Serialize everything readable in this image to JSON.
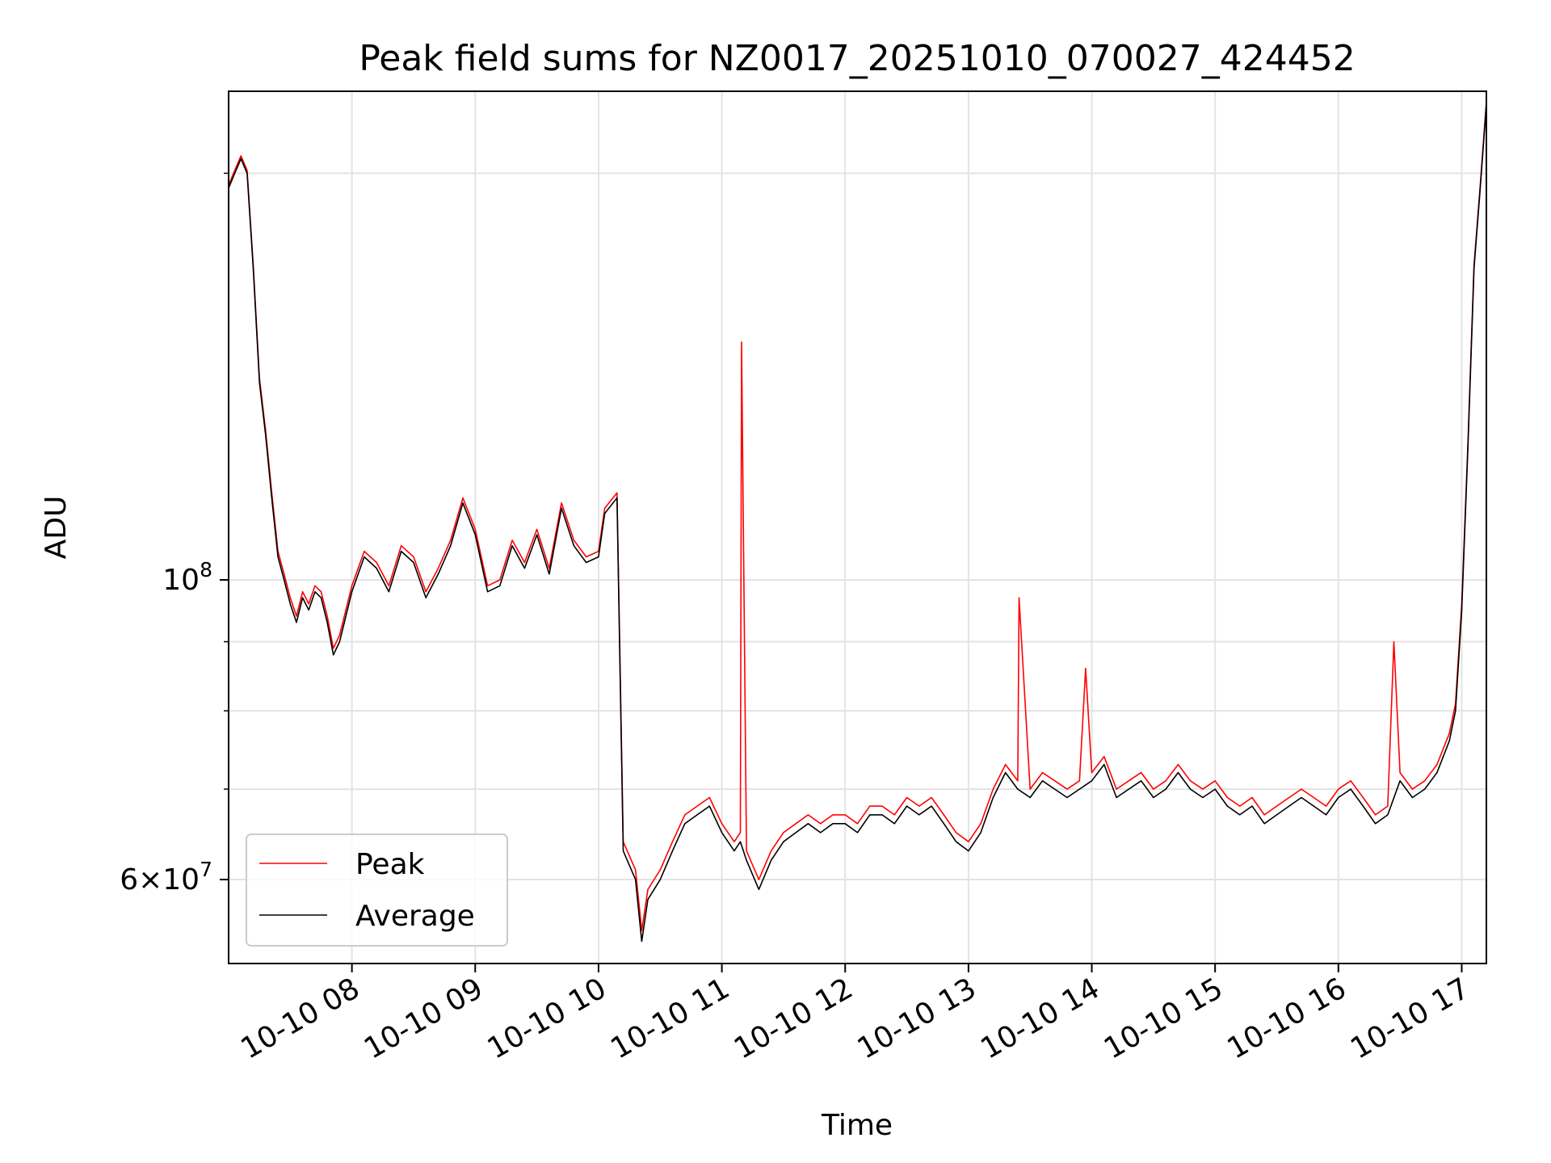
{
  "chart_data": {
    "type": "line",
    "title": "Peak field sums for NZ0017_20251010_070027_424452",
    "xlabel": "Time",
    "ylabel": "ADU",
    "yscale": "log",
    "grid": true,
    "legend_position": "lower-left",
    "xlim": [
      7.0,
      17.2
    ],
    "ylim": [
      52000000,
      230000000
    ],
    "x_ticks": [
      {
        "value": 8,
        "label": "10-10 08"
      },
      {
        "value": 9,
        "label": "10-10 09"
      },
      {
        "value": 10,
        "label": "10-10 10"
      },
      {
        "value": 11,
        "label": "10-10 11"
      },
      {
        "value": 12,
        "label": "10-10 12"
      },
      {
        "value": 13,
        "label": "10-10 13"
      },
      {
        "value": 14,
        "label": "10-10 14"
      },
      {
        "value": 15,
        "label": "10-10 15"
      },
      {
        "value": 16,
        "label": "10-10 16"
      },
      {
        "value": 17,
        "label": "10-10 17"
      }
    ],
    "y_ticks": [
      {
        "value": 100000000,
        "base": "10",
        "exp": "8",
        "mant": ""
      },
      {
        "value": 60000000,
        "base": "10",
        "exp": "7",
        "mant": "6×"
      }
    ],
    "y_minor_ticks": [
      70000000,
      80000000,
      90000000,
      200000000
    ],
    "x_unit": "hour of day (2025-10-10)",
    "series": [
      {
        "name": "Average",
        "color": "#000000",
        "x": [
          7.0,
          7.05,
          7.1,
          7.15,
          7.2,
          7.25,
          7.3,
          7.35,
          7.4,
          7.45,
          7.5,
          7.55,
          7.6,
          7.65,
          7.7,
          7.75,
          7.8,
          7.85,
          7.9,
          8.0,
          8.1,
          8.2,
          8.3,
          8.4,
          8.5,
          8.6,
          8.7,
          8.8,
          8.9,
          9.0,
          9.1,
          9.2,
          9.3,
          9.4,
          9.5,
          9.6,
          9.7,
          9.8,
          9.9,
          10.0,
          10.05,
          10.15,
          10.2,
          10.3,
          10.35,
          10.4,
          10.5,
          10.6,
          10.7,
          10.8,
          10.9,
          11.0,
          11.1,
          11.15,
          11.2,
          11.3,
          11.4,
          11.5,
          11.6,
          11.7,
          11.8,
          11.9,
          12.0,
          12.1,
          12.2,
          12.3,
          12.4,
          12.5,
          12.6,
          12.7,
          12.8,
          12.9,
          13.0,
          13.1,
          13.2,
          13.3,
          13.4,
          13.5,
          13.6,
          13.7,
          13.8,
          13.9,
          14.0,
          14.1,
          14.2,
          14.3,
          14.4,
          14.5,
          14.6,
          14.7,
          14.8,
          14.9,
          15.0,
          15.1,
          15.2,
          15.3,
          15.4,
          15.5,
          15.6,
          15.7,
          15.8,
          15.9,
          16.0,
          16.1,
          16.2,
          16.3,
          16.4,
          16.5,
          16.6,
          16.7,
          16.8,
          16.9,
          16.95,
          17.0,
          17.05,
          17.1,
          17.15,
          17.2
        ],
        "y": [
          195000000,
          200000000,
          205000000,
          200000000,
          170000000,
          140000000,
          128000000,
          115000000,
          104000000,
          100000000,
          96000000,
          93000000,
          97000000,
          95000000,
          98000000,
          97000000,
          93000000,
          88000000,
          90000000,
          98000000,
          104000000,
          102000000,
          98000000,
          105000000,
          103000000,
          97000000,
          101000000,
          106000000,
          114000000,
          108000000,
          98000000,
          99000000,
          106000000,
          102000000,
          108000000,
          101000000,
          113000000,
          106000000,
          103000000,
          104000000,
          112000000,
          115000000,
          63000000,
          60000000,
          54000000,
          58000000,
          60000000,
          63000000,
          66000000,
          67000000,
          68000000,
          65000000,
          63000000,
          64000000,
          62000000,
          59000000,
          62000000,
          64000000,
          65000000,
          66000000,
          65000000,
          66000000,
          66000000,
          65000000,
          67000000,
          67000000,
          66000000,
          68000000,
          67000000,
          68000000,
          66000000,
          64000000,
          63000000,
          65000000,
          69000000,
          72000000,
          70000000,
          69000000,
          71000000,
          70000000,
          69000000,
          70000000,
          71000000,
          73000000,
          69000000,
          70000000,
          71000000,
          69000000,
          70000000,
          72000000,
          70000000,
          69000000,
          70000000,
          68000000,
          67000000,
          68000000,
          66000000,
          67000000,
          68000000,
          69000000,
          68000000,
          67000000,
          69000000,
          70000000,
          68000000,
          66000000,
          67000000,
          71000000,
          69000000,
          70000000,
          72000000,
          76000000,
          80000000,
          95000000,
          125000000,
          170000000,
          195000000,
          225000000
        ]
      },
      {
        "name": "Peak",
        "color": "#ff0000",
        "x": [
          7.0,
          7.05,
          7.1,
          7.15,
          7.2,
          7.25,
          7.3,
          7.35,
          7.4,
          7.45,
          7.5,
          7.55,
          7.6,
          7.65,
          7.7,
          7.75,
          7.8,
          7.85,
          7.9,
          8.0,
          8.1,
          8.2,
          8.3,
          8.4,
          8.5,
          8.6,
          8.7,
          8.8,
          8.9,
          9.0,
          9.1,
          9.2,
          9.3,
          9.4,
          9.5,
          9.6,
          9.7,
          9.8,
          9.9,
          10.0,
          10.05,
          10.15,
          10.2,
          10.3,
          10.35,
          10.4,
          10.5,
          10.6,
          10.7,
          10.8,
          10.9,
          11.0,
          11.1,
          11.15,
          11.16,
          11.2,
          11.3,
          11.4,
          11.5,
          11.6,
          11.7,
          11.8,
          11.9,
          12.0,
          12.1,
          12.2,
          12.3,
          12.4,
          12.5,
          12.6,
          12.7,
          12.8,
          12.9,
          13.0,
          13.1,
          13.2,
          13.3,
          13.4,
          13.41,
          13.5,
          13.6,
          13.7,
          13.8,
          13.9,
          13.95,
          14.0,
          14.1,
          14.2,
          14.3,
          14.4,
          14.5,
          14.6,
          14.7,
          14.8,
          14.9,
          15.0,
          15.1,
          15.2,
          15.3,
          15.4,
          15.5,
          15.6,
          15.7,
          15.8,
          15.9,
          16.0,
          16.1,
          16.2,
          16.3,
          16.4,
          16.45,
          16.5,
          16.6,
          16.7,
          16.8,
          16.9,
          16.95,
          17.0,
          17.05,
          17.1,
          17.15,
          17.2
        ],
        "y": [
          196000000,
          201000000,
          206000000,
          201000000,
          171000000,
          141000000,
          129000000,
          116000000,
          105000000,
          101000000,
          97000000,
          94000000,
          98000000,
          96000000,
          99000000,
          98000000,
          94000000,
          89000000,
          91000000,
          99000000,
          105000000,
          103000000,
          99000000,
          106000000,
          104000000,
          98000000,
          102000000,
          107000000,
          115000000,
          109000000,
          99000000,
          100000000,
          107000000,
          103000000,
          109000000,
          102000000,
          114000000,
          107000000,
          104000000,
          105000000,
          113000000,
          116000000,
          64000000,
          61000000,
          55000000,
          59000000,
          61000000,
          64000000,
          67000000,
          68000000,
          69000000,
          66000000,
          64000000,
          65000000,
          150000000,
          63000000,
          60000000,
          63000000,
          65000000,
          66000000,
          67000000,
          66000000,
          67000000,
          67000000,
          66000000,
          68000000,
          68000000,
          67000000,
          69000000,
          68000000,
          69000000,
          67000000,
          65000000,
          64000000,
          66000000,
          70000000,
          73000000,
          71000000,
          97000000,
          70000000,
          72000000,
          71000000,
          70000000,
          71000000,
          86000000,
          72000000,
          74000000,
          70000000,
          71000000,
          72000000,
          70000000,
          71000000,
          73000000,
          71000000,
          70000000,
          71000000,
          69000000,
          68000000,
          69000000,
          67000000,
          68000000,
          69000000,
          70000000,
          69000000,
          68000000,
          70000000,
          71000000,
          69000000,
          67000000,
          68000000,
          90000000,
          72000000,
          70000000,
          71000000,
          73000000,
          77000000,
          81000000,
          96000000,
          126000000,
          171000000,
          196000000,
          226000000
        ]
      }
    ]
  }
}
